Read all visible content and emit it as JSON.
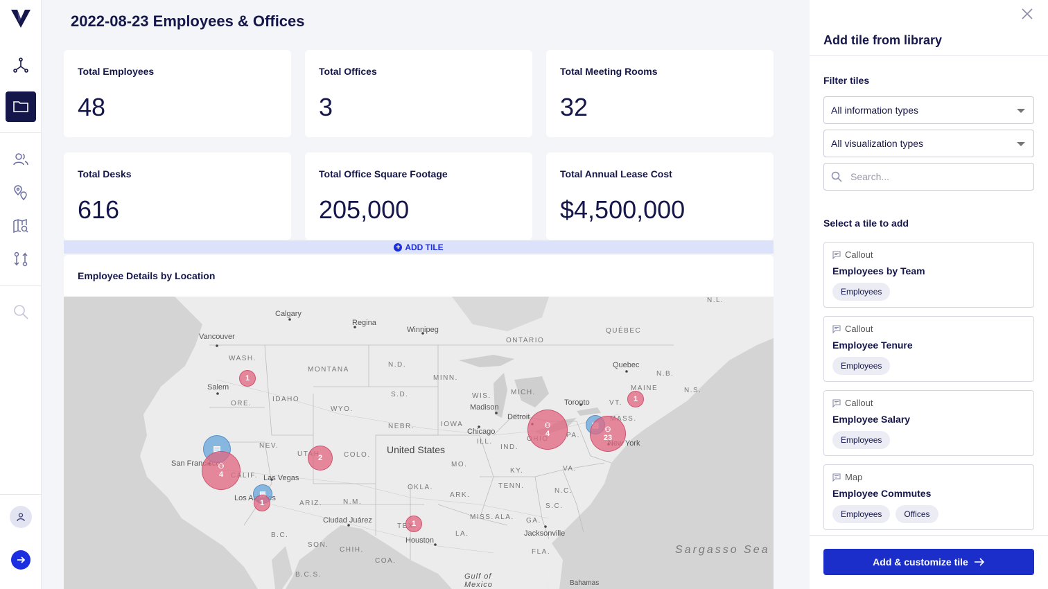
{
  "page": {
    "title": "2022-08-23 Employees & Offices"
  },
  "colors": {
    "primary": "#1b2ec9",
    "navy": "#15164a",
    "employee_bubble": "#e26580",
    "office_bubble": "#6eaadc",
    "add_tile_bar": "#dde2fb"
  },
  "sidebar": {
    "items": [
      {
        "icon": "logo-icon"
      },
      {
        "icon": "graph-icon"
      },
      {
        "icon": "folder-icon",
        "active": true
      },
      {
        "icon": "people-icon"
      },
      {
        "icon": "location-pins-icon"
      },
      {
        "icon": "map-search-icon"
      },
      {
        "icon": "transfer-icon"
      },
      {
        "icon": "search-icon"
      },
      {
        "icon": "user-avatar-icon"
      },
      {
        "icon": "arrow-right-icon"
      }
    ]
  },
  "kpis": [
    {
      "label": "Total Employees",
      "value": "48"
    },
    {
      "label": "Total Offices",
      "value": "3"
    },
    {
      "label": "Total Meeting Rooms",
      "value": "32"
    },
    {
      "label": "Total Desks",
      "value": "616"
    },
    {
      "label": "Total Office Square Footage",
      "value": "205,000"
    },
    {
      "label": "Total Annual Lease Cost",
      "value": "$4,500,000"
    }
  ],
  "add_tile": {
    "label": "ADD TILE"
  },
  "map_tile": {
    "title": "Employee Details by Location",
    "labels": {
      "calgary": "Calgary",
      "regina": "Regina",
      "winnipeg": "Winnipeg",
      "ontario": "ONTARIO",
      "quebec_prov": "QUÉBEC",
      "nl": "N.L.",
      "vancouver": "Vancouver",
      "wash": "WASH.",
      "montana": "MONTANA",
      "nd": "N.D.",
      "minn": "MINN.",
      "quebec_city": "Quebec",
      "nb": "N.B.",
      "salem": "Salem",
      "idaho": "IDAHO",
      "sd": "S.D.",
      "wis": "WIS.",
      "mich": "MICH.",
      "toronto": "Toronto",
      "maine": "MAINE",
      "ns": "N.S.",
      "ore": "ORE.",
      "wyo": "WYO.",
      "madison": "Madison",
      "vt": "VT.",
      "detroit": "Detroit",
      "nebr": "NEBR.",
      "iowa": "IOWA",
      "mass": "MASS.",
      "chicago": "Chicago",
      "pa": "PA.",
      "nev": "NEV.",
      "ill": "ILL.",
      "ind": "IND.",
      "ohio": "OHIO",
      "new_york": "New York",
      "utah": "UTAH",
      "colo": "COLO.",
      "united_states": "United States",
      "san_francisco": "San Francisco",
      "calif": "CALIF.",
      "mo": "MO.",
      "ky": "KY.",
      "va": "VA.",
      "las_vegas": "Las Vegas",
      "okla": "OKLA.",
      "tenn": "TENN.",
      "nc": "N.C.",
      "los_angeles": "Los Angeles",
      "ariz": "ARIZ.",
      "nm": "N.M.",
      "ark": "ARK.",
      "sc": "S.C.",
      "ciudad_juarez": "Ciudad Juárez",
      "miss": "MISS.",
      "ala": "ALA.",
      "ga": "GA.",
      "tex": "TEX.",
      "jacksonville": "Jacksonville",
      "la": "LA.",
      "houston": "Houston",
      "bc": "B.C.",
      "son": "SON.",
      "chih": "CHIH.",
      "fla": "FLA.",
      "coa": "COA.",
      "sargasso": "Sargasso Sea",
      "bcs": "B.C.S.",
      "gulf": "Gulf of Mexico",
      "bahamas": "Bahamas"
    },
    "bubbles": [
      {
        "type": "employees",
        "count": "1",
        "place": "Oregon"
      },
      {
        "type": "employees",
        "count": "1",
        "place": "Maine"
      },
      {
        "type": "employees",
        "count": "4",
        "place": "Ohio",
        "icon": "people-icon"
      },
      {
        "type": "office",
        "place": "New York",
        "icon": "building-icon"
      },
      {
        "type": "employees",
        "count": "23",
        "place": "New York",
        "icon": "people-icon"
      },
      {
        "type": "office",
        "place": "San Francisco",
        "icon": "building-icon"
      },
      {
        "type": "employees",
        "count": "4",
        "place": "San Francisco",
        "icon": "people-icon"
      },
      {
        "type": "employees",
        "count": "2",
        "place": "Utah"
      },
      {
        "type": "office",
        "place": "Los Angeles",
        "icon": "building-icon"
      },
      {
        "type": "employees",
        "count": "1",
        "place": "Los Angeles"
      },
      {
        "type": "employees",
        "count": "1",
        "place": "Texas"
      }
    ]
  },
  "panel": {
    "title": "Add tile from library",
    "filter_label": "Filter tiles",
    "info_type": "All information types",
    "viz_type": "All visualization types",
    "search_placeholder": "Search...",
    "select_label": "Select a tile to add",
    "tiles": [
      {
        "type": "Callout",
        "name": "Employees by Team",
        "tags": [
          "Employees"
        ]
      },
      {
        "type": "Callout",
        "name": "Employee Tenure",
        "tags": [
          "Employees"
        ]
      },
      {
        "type": "Callout",
        "name": "Employee Salary",
        "tags": [
          "Employees"
        ]
      },
      {
        "type": "Map",
        "name": "Employee Commutes",
        "tags": [
          "Employees",
          "Offices"
        ]
      }
    ],
    "button_label": "Add & customize tile"
  }
}
